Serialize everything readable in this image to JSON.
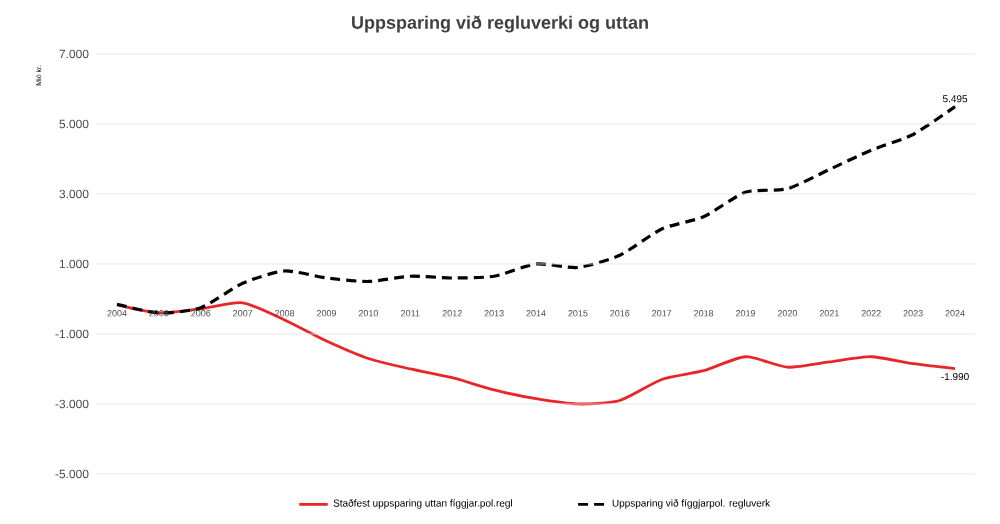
{
  "chart_data": {
    "type": "line",
    "title": "Uppsparing við regluverki og uttan",
    "ylabel": "Mió kr.",
    "categories": [
      "2004",
      "2005",
      "2006",
      "2007",
      "2008",
      "2009",
      "2010",
      "2011",
      "2012",
      "2013",
      "2014",
      "2015",
      "2016",
      "2017",
      "2018",
      "2019",
      "2020",
      "2021",
      "2022",
      "2023",
      "2024"
    ],
    "series": [
      {
        "name": "Staðfest uppsparing uttan fíggjar.pol.regl",
        "color": "#e8262a",
        "line_style": "solid",
        "values": [
          -170,
          -400,
          -280,
          -110,
          -600,
          -1200,
          -1700,
          -2000,
          -2250,
          -2600,
          -2850,
          -3000,
          -2900,
          -2300,
          -2050,
          -1650,
          -1950,
          -1800,
          -1650,
          -1850,
          -1990
        ],
        "value_labels": [
          null,
          null,
          null,
          null,
          null,
          null,
          null,
          null,
          null,
          null,
          null,
          null,
          null,
          null,
          null,
          null,
          null,
          null,
          null,
          null,
          "-1.990"
        ]
      },
      {
        "name": "Uppsparing við fíggjarpol. regluverk",
        "color": "#000000",
        "line_style": "dashed",
        "values": [
          -150,
          -400,
          -250,
          450,
          800,
          600,
          500,
          650,
          600,
          650,
          1000,
          900,
          1250,
          2000,
          2350,
          3050,
          3150,
          3700,
          4250,
          4700,
          5495
        ],
        "value_labels": [
          null,
          null,
          null,
          null,
          null,
          null,
          null,
          null,
          null,
          null,
          null,
          null,
          null,
          null,
          null,
          null,
          null,
          null,
          null,
          null,
          "5.495"
        ]
      }
    ],
    "ylim": [
      -5000,
      7000
    ],
    "yticks": [
      {
        "value": -5000,
        "label": "-5.000"
      },
      {
        "value": -3000,
        "label": "-3.000"
      },
      {
        "value": -1000,
        "label": "-1.000"
      },
      {
        "value": 1000,
        "label": "1.000"
      },
      {
        "value": 3000,
        "label": "3.000"
      },
      {
        "value": 5000,
        "label": "5.000"
      },
      {
        "value": 7000,
        "label": "7.000"
      }
    ],
    "grid": "y",
    "legend": "bottom",
    "marker": "none"
  }
}
